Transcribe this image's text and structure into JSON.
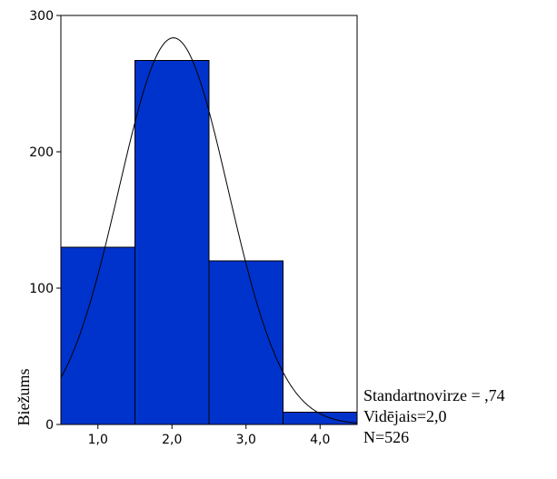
{
  "chart_data": {
    "type": "bar",
    "subtype": "histogram-with-normal-curve",
    "ylabel": "Biežums",
    "xlabel": "",
    "bins": [
      {
        "from": 0.5,
        "to": 1.5,
        "value": 130
      },
      {
        "from": 1.5,
        "to": 2.5,
        "value": 267
      },
      {
        "from": 2.5,
        "to": 3.5,
        "value": 120
      },
      {
        "from": 3.5,
        "to": 4.5,
        "value": 9
      }
    ],
    "xlim": [
      0.5,
      4.5
    ],
    "ylim": [
      0,
      300
    ],
    "x_ticks": [
      1.0,
      2.0,
      3.0,
      4.0
    ],
    "x_tick_labels": [
      "1,0",
      "2,0",
      "3,0",
      "4,0"
    ],
    "y_ticks": [
      0,
      100,
      200,
      300
    ],
    "y_tick_labels": [
      "0",
      "100",
      "200",
      "300"
    ],
    "normal_curve": {
      "mean": 2.02,
      "sd": 0.74,
      "n": 526,
      "bin_width": 1
    },
    "bar_color": "#0033cc",
    "curve_color": "#000000",
    "stats": {
      "std": "Standartnovirze = ,74",
      "mean": "Vidējais=2,0",
      "n": "N=526"
    }
  }
}
